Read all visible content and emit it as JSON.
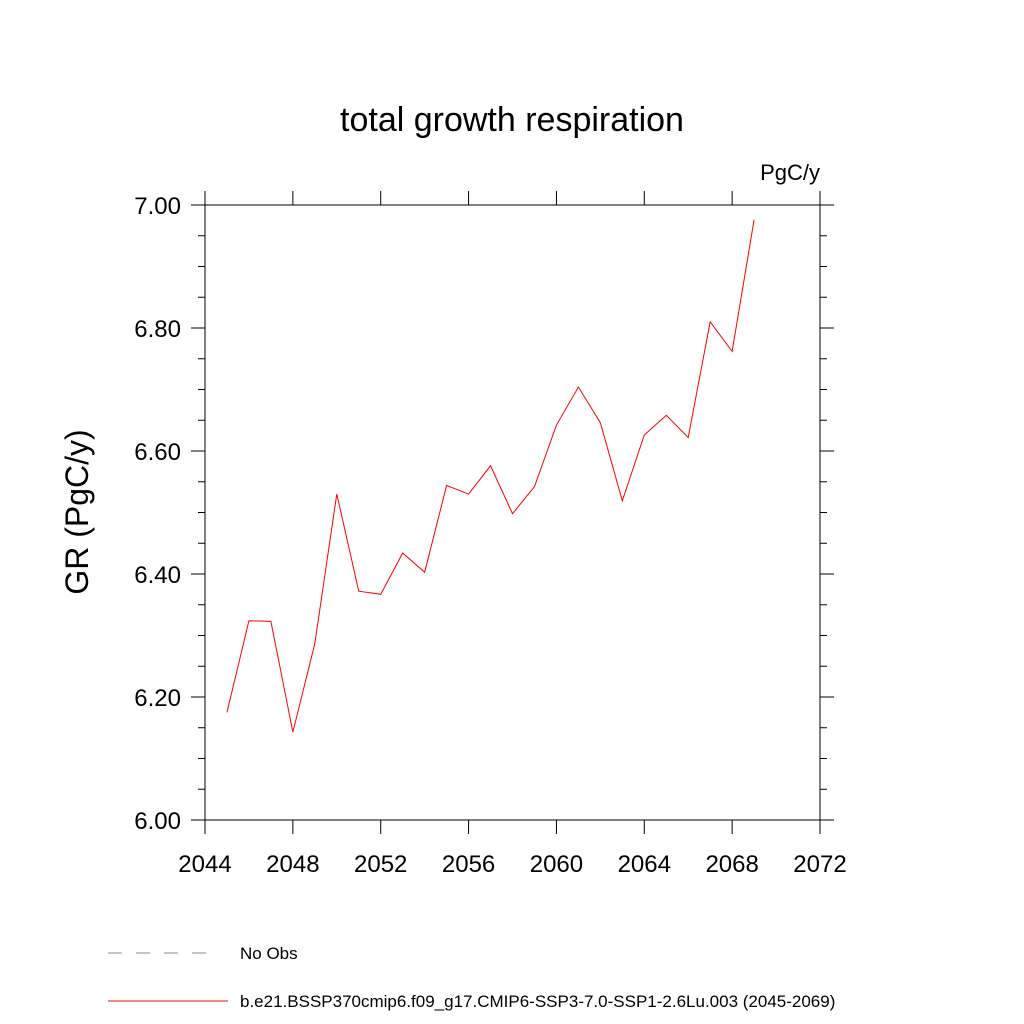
{
  "chart_data": {
    "type": "line",
    "title": "total growth respiration",
    "units_label": "PgC/y",
    "ylabel": "GR  (PgC/y)",
    "xlabel": "",
    "xlim": [
      2044,
      2072
    ],
    "ylim": [
      6.0,
      7.0
    ],
    "x_ticks": [
      "2044",
      "2048",
      "2052",
      "2056",
      "2060",
      "2064",
      "2068",
      "2072"
    ],
    "y_ticks": [
      "6.00",
      "6.20",
      "6.40",
      "6.60",
      "6.80",
      "7.00"
    ],
    "series": [
      {
        "name": "b.e21.BSSP370cmip6.f09_g17.CMIP6-SSP3-7.0-SSP1-2.6Lu.003 (2045-2069)",
        "color": "#ff0000",
        "style": "solid",
        "x": [
          2045,
          2046,
          2047,
          2048,
          2049,
          2050,
          2051,
          2052,
          2053,
          2054,
          2055,
          2056,
          2057,
          2058,
          2059,
          2060,
          2061,
          2062,
          2063,
          2064,
          2065,
          2066,
          2067,
          2068,
          2069
        ],
        "y": [
          6.175,
          6.324,
          6.323,
          6.143,
          6.287,
          6.53,
          6.372,
          6.367,
          6.434,
          6.403,
          6.544,
          6.53,
          6.576,
          6.498,
          6.542,
          6.642,
          6.704,
          6.646,
          6.519,
          6.626,
          6.658,
          6.622,
          6.81,
          6.762,
          6.976
        ]
      }
    ],
    "legend": [
      {
        "label": "No Obs",
        "color": "#8a7fbf",
        "style": "dashed"
      },
      {
        "label": "b.e21.BSSP370cmip6.f09_g17.CMIP6-SSP3-7.0-SSP1-2.6Lu.003 (2045-2069)",
        "color": "#ff0000",
        "style": "solid"
      }
    ],
    "legend_position": "bottom",
    "grid": false
  }
}
